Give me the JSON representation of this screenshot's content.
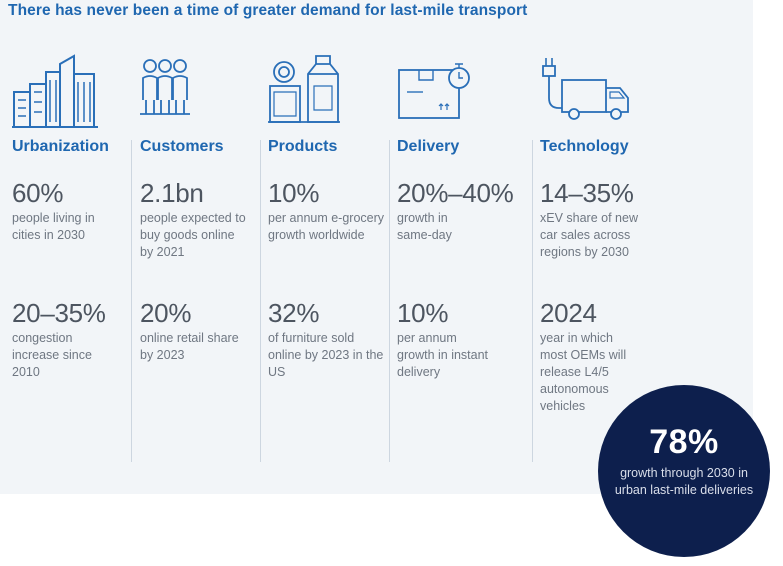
{
  "headline": "There has never been a time of greater demand for last-mile transport",
  "columns": [
    {
      "icon": "buildings-icon",
      "category": "Urbanization",
      "stats": [
        {
          "value": "60%",
          "desc": "people living in cities in 2030"
        },
        {
          "value": "20–35%",
          "desc": "congestion increase since 2010"
        }
      ]
    },
    {
      "icon": "people-icon",
      "category": "Customers",
      "stats": [
        {
          "value": "2.1bn",
          "desc": "people expected to buy goods online by 2021"
        },
        {
          "value": "20%",
          "desc": "online retail share by 2023"
        }
      ]
    },
    {
      "icon": "groceries-icon",
      "category": "Products",
      "stats": [
        {
          "value": "10%",
          "desc": "per annum e-grocery growth worldwide"
        },
        {
          "value": "32%",
          "desc": "of furniture sold online by 2023 in the US"
        }
      ]
    },
    {
      "icon": "package-stopwatch-icon",
      "category": "Delivery",
      "stats": [
        {
          "value": "20%–40%",
          "desc": "growth in same-day"
        },
        {
          "value": "10%",
          "desc": "per annum growth in instant delivery"
        }
      ]
    },
    {
      "icon": "electric-truck-icon",
      "category": "Technology",
      "stats": [
        {
          "value": "14–35%",
          "desc": "xEV share of new car sales across regions by 2030"
        },
        {
          "value": "2024",
          "desc": "year in which most OEMs will release L4/5 autonomous vehicles"
        }
      ]
    }
  ],
  "highlight": {
    "value": "78%",
    "desc": "growth through 2030 in urban last-mile deliveries"
  },
  "colors": {
    "accent": "#1f67b0",
    "circle": "#0d1f4d",
    "panel": "#f2f5f8"
  }
}
